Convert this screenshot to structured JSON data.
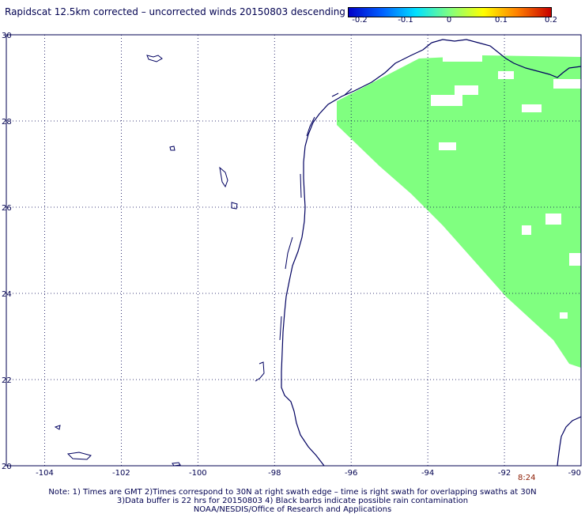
{
  "title": "Rapidscat 12.5km corrected – uncorrected winds 20150803 descending",
  "colorbar": {
    "labels": [
      "-0.2",
      "-0.1",
      "0",
      "0.1",
      "0.2"
    ],
    "colors": [
      "#0000c8",
      "#0060ff",
      "#00e0ff",
      "#80ff80",
      "#ffff00",
      "#ff8000",
      "#c80000"
    ]
  },
  "map": {
    "lon_range": [
      -105,
      -90
    ],
    "lat_range": [
      20,
      30
    ],
    "lon_ticks": [
      "-104",
      "-102",
      "-100",
      "-98",
      "-96",
      "-94",
      "-92",
      "-90"
    ],
    "lat_ticks": [
      "20",
      "22",
      "24",
      "26",
      "28",
      "30"
    ],
    "swath_color": "#80ff80",
    "coast_color": "#000060",
    "swath_value": "0"
  },
  "time_label": "8:24",
  "notes": [
    "Note: 1) Times are GMT 2)Times correspond to 30N at right swath edge – time is right swath for overlapping swaths at 30N",
    "3)Data buffer is 22 hrs for 20150803 4) Black barbs indicate possible rain contamination",
    "NOAA/NESDIS/Office of Research and Applications"
  ]
}
